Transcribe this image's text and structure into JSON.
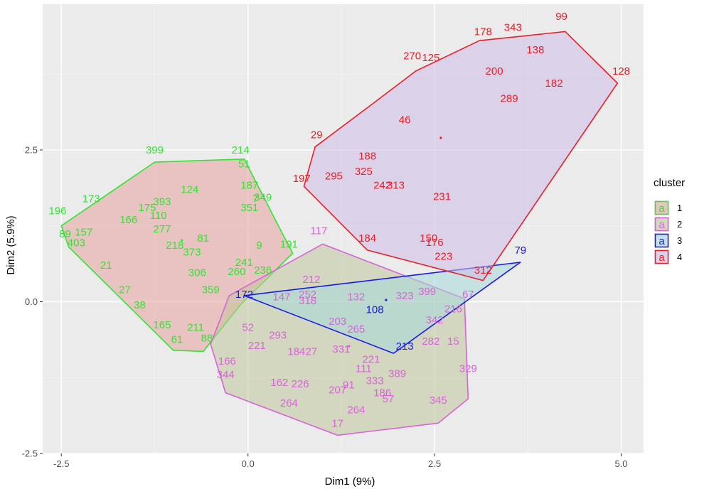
{
  "chart_data": {
    "type": "scatter",
    "xlabel": "Dim1 (9%)",
    "ylabel": "Dim2 (5.9%)",
    "xlim": [
      -2.75,
      5.3
    ],
    "ylim": [
      -2.5,
      4.9
    ],
    "xticks": [
      -2.5,
      0.0,
      2.5,
      5.0
    ],
    "xtick_labels": [
      "-2.5",
      "0.0",
      "2.5",
      "5.0"
    ],
    "yticks": [
      -2.5,
      0.0,
      2.5
    ],
    "ytick_labels": [
      "-2.5",
      "0.0",
      "2.5"
    ],
    "grid": true,
    "legend": {
      "title": "cluster",
      "position": "right",
      "glyph": "a",
      "entries": [
        {
          "label": "1",
          "color": "#2ee62e"
        },
        {
          "label": "2",
          "color": "#d863d8"
        },
        {
          "label": "3",
          "color": "#1a1ae6"
        },
        {
          "label": "4",
          "color": "#e6202a"
        }
      ]
    },
    "series": [
      {
        "name": "1",
        "color": "#2ee62e",
        "fill": "#e8a3a0",
        "hull": [
          [
            -2.5,
            1.25
          ],
          [
            -1.25,
            2.3
          ],
          [
            -0.05,
            2.35
          ],
          [
            0.45,
            1.15
          ],
          [
            0.6,
            0.8
          ],
          [
            -0.1,
            -0.05
          ],
          [
            -0.6,
            -0.82
          ],
          [
            -1.0,
            -0.8
          ],
          [
            -2.4,
            0.9
          ]
        ],
        "points": [
          {
            "label": "399",
            "x": -1.25,
            "y": 2.5
          },
          {
            "label": "214",
            "x": -0.1,
            "y": 2.5
          },
          {
            "label": "51",
            "x": -0.05,
            "y": 2.27
          },
          {
            "label": "124",
            "x": -0.78,
            "y": 1.85
          },
          {
            "label": "187",
            "x": 0.02,
            "y": 1.92
          },
          {
            "label": "7",
            "x": 0.1,
            "y": 1.7
          },
          {
            "label": "349",
            "x": 0.2,
            "y": 1.72
          },
          {
            "label": "351",
            "x": 0.02,
            "y": 1.55
          },
          {
            "label": "173",
            "x": -2.1,
            "y": 1.7
          },
          {
            "label": "393",
            "x": -1.15,
            "y": 1.65
          },
          {
            "label": "175",
            "x": -1.35,
            "y": 1.55
          },
          {
            "label": "110",
            "x": -1.2,
            "y": 1.42
          },
          {
            "label": "196",
            "x": -2.55,
            "y": 1.5
          },
          {
            "label": "166",
            "x": -1.6,
            "y": 1.35
          },
          {
            "label": "277",
            "x": -1.15,
            "y": 1.2
          },
          {
            "label": "81",
            "x": -0.6,
            "y": 1.05
          },
          {
            "label": "9",
            "x": 0.15,
            "y": 0.93
          },
          {
            "label": "191",
            "x": 0.55,
            "y": 0.95
          },
          {
            "label": "89",
            "x": -2.45,
            "y": 1.12
          },
          {
            "label": "157",
            "x": -2.2,
            "y": 1.15
          },
          {
            "label": "403",
            "x": -2.3,
            "y": 0.97
          },
          {
            "label": "218",
            "x": -0.98,
            "y": 0.93
          },
          {
            "label": "373",
            "x": -0.75,
            "y": 0.82
          },
          {
            "label": "241",
            "x": -0.05,
            "y": 0.65
          },
          {
            "label": "260",
            "x": -0.15,
            "y": 0.5
          },
          {
            "label": "236",
            "x": 0.2,
            "y": 0.52
          },
          {
            "label": "306",
            "x": -0.68,
            "y": 0.48
          },
          {
            "label": "359",
            "x": -0.5,
            "y": 0.2
          },
          {
            "label": "27",
            "x": -1.65,
            "y": 0.2
          },
          {
            "label": "165",
            "x": -1.15,
            "y": -0.38
          },
          {
            "label": "61",
            "x": -0.95,
            "y": -0.62
          },
          {
            "label": "88",
            "x": -0.55,
            "y": -0.6
          },
          {
            "label": "211",
            "x": -0.7,
            "y": -0.42
          },
          {
            "label": "38",
            "x": -1.45,
            "y": -0.05
          },
          {
            "label": "21",
            "x": -1.9,
            "y": 0.6
          }
        ]
      },
      {
        "name": "2",
        "color": "#d863d8",
        "fill": "#bfc79a",
        "hull": [
          [
            -0.25,
            0.1
          ],
          [
            1.0,
            0.95
          ],
          [
            2.9,
            0.05
          ],
          [
            2.95,
            -1.6
          ],
          [
            2.55,
            -2.0
          ],
          [
            1.2,
            -2.2
          ],
          [
            -0.3,
            -1.5
          ],
          [
            -0.5,
            -0.7
          ]
        ],
        "points": [
          {
            "label": "117",
            "x": 0.95,
            "y": 1.17
          },
          {
            "label": "212",
            "x": 0.85,
            "y": 0.37
          },
          {
            "label": "252",
            "x": 0.8,
            "y": 0.12
          },
          {
            "label": "132",
            "x": 1.45,
            "y": 0.08
          },
          {
            "label": "323",
            "x": 2.1,
            "y": 0.1
          },
          {
            "label": "399",
            "x": 2.4,
            "y": 0.17
          },
          {
            "label": "67",
            "x": 2.95,
            "y": 0.12
          },
          {
            "label": "216",
            "x": 2.75,
            "y": -0.12
          },
          {
            "label": "342",
            "x": 2.5,
            "y": -0.3
          },
          {
            "label": "318",
            "x": 0.8,
            "y": 0.02
          },
          {
            "label": "147",
            "x": 0.45,
            "y": 0.08
          },
          {
            "label": "203",
            "x": 1.2,
            "y": -0.32
          },
          {
            "label": "265",
            "x": 1.45,
            "y": -0.45
          },
          {
            "label": "282",
            "x": 2.45,
            "y": -0.65
          },
          {
            "label": "15",
            "x": 2.75,
            "y": -0.65
          },
          {
            "label": "329",
            "x": 2.95,
            "y": -1.1
          },
          {
            "label": "389",
            "x": 2.0,
            "y": -1.18
          },
          {
            "label": "333",
            "x": 1.7,
            "y": -1.3
          },
          {
            "label": "111",
            "x": 1.55,
            "y": -1.1
          },
          {
            "label": "207",
            "x": 1.2,
            "y": -1.45
          },
          {
            "label": "91",
            "x": 1.35,
            "y": -1.37
          },
          {
            "label": "226",
            "x": 0.7,
            "y": -1.35
          },
          {
            "label": "162",
            "x": 0.42,
            "y": -1.33
          },
          {
            "label": "186",
            "x": 1.8,
            "y": -1.5
          },
          {
            "label": "57",
            "x": 1.88,
            "y": -1.6
          },
          {
            "label": "345",
            "x": 2.55,
            "y": -1.62
          },
          {
            "label": "264",
            "x": 1.45,
            "y": -1.78
          },
          {
            "label": "264",
            "x": 0.55,
            "y": -1.67
          },
          {
            "label": "17",
            "x": 1.2,
            "y": -2.0
          },
          {
            "label": "344",
            "x": -0.3,
            "y": -1.2
          },
          {
            "label": "166",
            "x": -0.28,
            "y": -0.98
          },
          {
            "label": "221",
            "x": 0.12,
            "y": -0.72
          },
          {
            "label": "52",
            "x": 0.0,
            "y": -0.42
          },
          {
            "label": "293",
            "x": 0.4,
            "y": -0.55
          },
          {
            "label": "27",
            "x": 0.85,
            "y": -0.82
          },
          {
            "label": "184",
            "x": 0.65,
            "y": -0.82
          },
          {
            "label": "331",
            "x": 1.25,
            "y": -0.78
          },
          {
            "label": "221",
            "x": 1.65,
            "y": -0.95
          }
        ]
      },
      {
        "name": "3",
        "color": "#1a1ae6",
        "fill": "#a6d8d8",
        "hull": [
          [
            -0.05,
            0.1
          ],
          [
            3.65,
            0.65
          ],
          [
            1.95,
            -0.85
          ]
        ],
        "points": [
          {
            "label": "79",
            "x": 3.65,
            "y": 0.85
          },
          {
            "label": "172",
            "x": -0.05,
            "y": 0.12
          },
          {
            "label": "108",
            "x": 1.7,
            "y": -0.13
          },
          {
            "label": "213",
            "x": 2.1,
            "y": -0.73
          }
        ]
      },
      {
        "name": "4",
        "color": "#e6202a",
        "fill": "#cdbde8",
        "hull": [
          [
            0.75,
            1.9
          ],
          [
            0.9,
            2.55
          ],
          [
            1.55,
            3.15
          ],
          [
            2.25,
            3.8
          ],
          [
            3.1,
            4.3
          ],
          [
            4.25,
            4.45
          ],
          [
            4.95,
            3.6
          ],
          [
            3.15,
            0.35
          ],
          [
            1.6,
            0.85
          ]
        ],
        "points": [
          {
            "label": "99",
            "x": 4.2,
            "y": 4.7
          },
          {
            "label": "343",
            "x": 3.55,
            "y": 4.52
          },
          {
            "label": "178",
            "x": 3.15,
            "y": 4.45
          },
          {
            "label": "138",
            "x": 3.85,
            "y": 4.15
          },
          {
            "label": "270",
            "x": 2.2,
            "y": 4.05
          },
          {
            "label": "125",
            "x": 2.45,
            "y": 4.02
          },
          {
            "label": "200",
            "x": 3.3,
            "y": 3.8
          },
          {
            "label": "128",
            "x": 5.0,
            "y": 3.8
          },
          {
            "label": "182",
            "x": 4.1,
            "y": 3.6
          },
          {
            "label": "289",
            "x": 3.5,
            "y": 3.35
          },
          {
            "label": "46",
            "x": 2.1,
            "y": 3.0
          },
          {
            "label": "29",
            "x": 0.92,
            "y": 2.75
          },
          {
            "label": "188",
            "x": 1.6,
            "y": 2.4
          },
          {
            "label": "325",
            "x": 1.55,
            "y": 2.15
          },
          {
            "label": "295",
            "x": 1.15,
            "y": 2.07
          },
          {
            "label": "197",
            "x": 0.72,
            "y": 2.03
          },
          {
            "label": "242",
            "x": 1.8,
            "y": 1.92
          },
          {
            "label": "313",
            "x": 1.98,
            "y": 1.92
          },
          {
            "label": "231",
            "x": 2.6,
            "y": 1.73
          },
          {
            "label": "184",
            "x": 1.6,
            "y": 1.05
          },
          {
            "label": "150",
            "x": 2.42,
            "y": 1.05
          },
          {
            "label": "176",
            "x": 2.5,
            "y": 0.98
          },
          {
            "label": "223",
            "x": 2.62,
            "y": 0.75
          },
          {
            "label": "312",
            "x": 3.15,
            "y": 0.52
          }
        ]
      }
    ]
  }
}
